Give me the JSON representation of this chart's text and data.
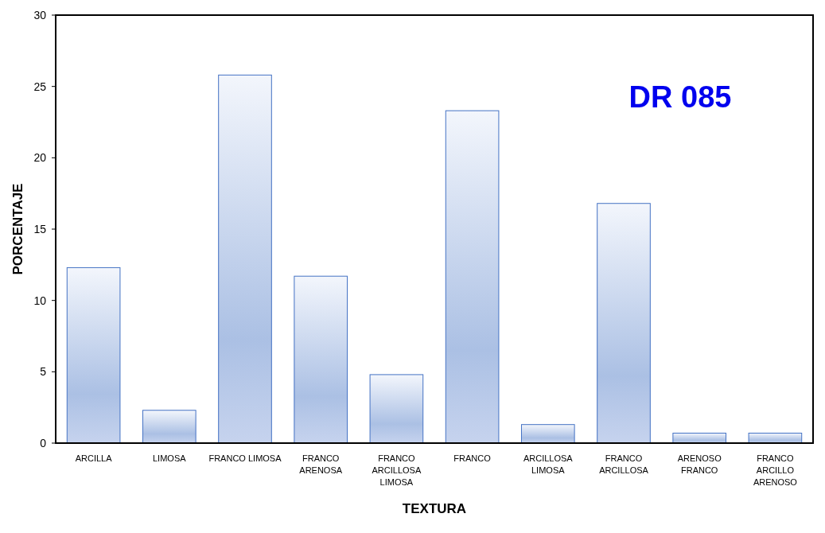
{
  "chart_data": {
    "type": "bar",
    "xlabel": "TEXTURA",
    "ylabel": "PORCENTAJE",
    "annotations": [
      "DR 085"
    ],
    "categories": [
      "ARCILLA",
      "LIMOSA",
      "FRANCO LIMOSA",
      "FRANCO ARENOSA",
      "FRANCO ARCILLOSA LIMOSA",
      "FRANCO",
      "ARCILLOSA LIMOSA",
      "FRANCO ARCILLOSA",
      "ARENOSO FRANCO",
      "FRANCO ARCILLO ARENOSO"
    ],
    "values": [
      12.3,
      2.3,
      25.8,
      11.7,
      4.8,
      23.3,
      1.3,
      16.8,
      0.7,
      0.7
    ],
    "color": "#4472c4",
    "ylim": [
      0,
      30
    ],
    "yticks": [
      0,
      5,
      10,
      15,
      20,
      25,
      30
    ],
    "grid": false
  }
}
